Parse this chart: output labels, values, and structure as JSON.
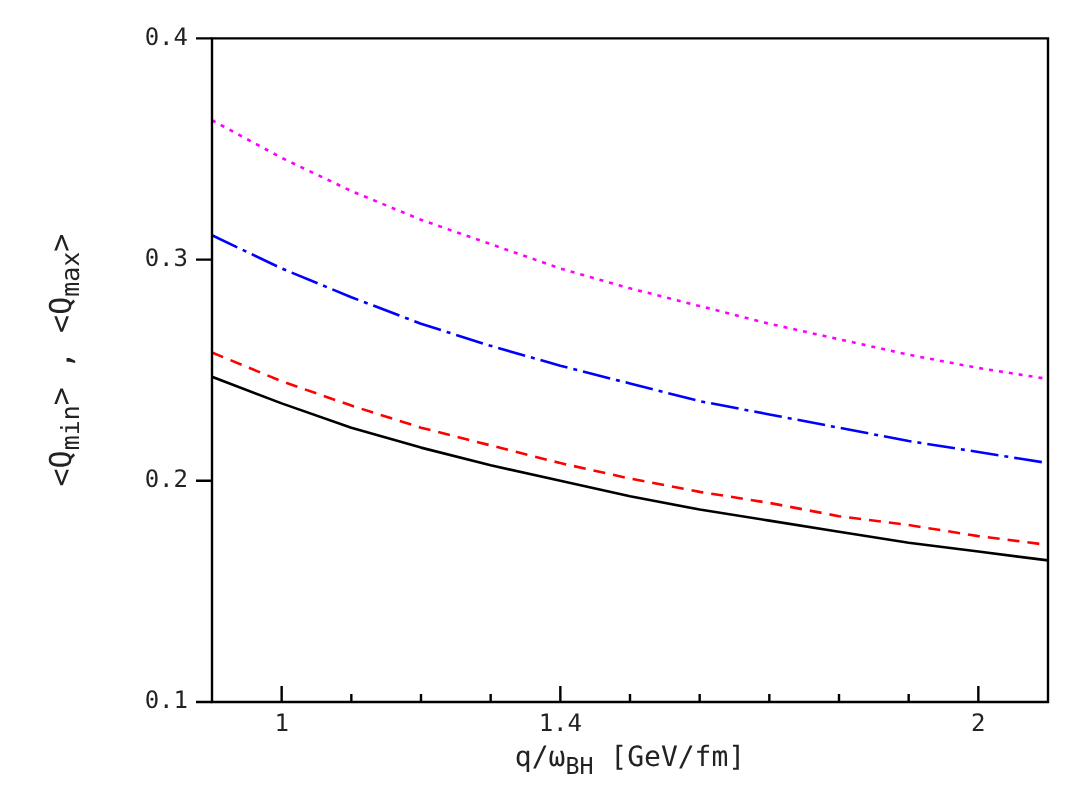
{
  "chart_data": {
    "type": "line",
    "xlabel": "q/ω$_{BH}$  [GeV/fm]",
    "ylabel": "<Q$_{min}$>  ,  <Q$_{max}$>",
    "x": [
      0.9,
      1.0,
      1.1,
      1.2,
      1.3,
      1.4,
      1.5,
      1.6,
      1.7,
      1.8,
      1.9,
      2.0,
      2.1
    ],
    "series": [
      {
        "color": "#000000",
        "line_style": "solid",
        "values": [
          0.247,
          0.235,
          0.224,
          0.215,
          0.207,
          0.2,
          0.193,
          0.187,
          0.182,
          0.177,
          0.172,
          0.168,
          0.164
        ]
      },
      {
        "color": "#ff0000",
        "line_style": "dashed",
        "values": [
          0.258,
          0.245,
          0.234,
          0.224,
          0.216,
          0.208,
          0.201,
          0.195,
          0.19,
          0.184,
          0.18,
          0.175,
          0.171
        ]
      },
      {
        "color": "#0000ff",
        "line_style": "dashdot",
        "values": [
          0.311,
          0.296,
          0.283,
          0.271,
          0.261,
          0.252,
          0.244,
          0.236,
          0.23,
          0.224,
          0.218,
          0.213,
          0.208
        ]
      },
      {
        "color": "#ff00ff",
        "line_style": "dotted",
        "values": [
          0.363,
          0.346,
          0.331,
          0.318,
          0.307,
          0.296,
          0.287,
          0.279,
          0.271,
          0.264,
          0.257,
          0.251,
          0.246
        ]
      }
    ],
    "xlim": [
      0.9,
      2.1
    ],
    "xticks": [
      1,
      {
        "value": 1.1,
        "label": null
      },
      {
        "value": 1.2,
        "label": null
      },
      {
        "value": 1.3,
        "label": null
      },
      1.4,
      {
        "value": 1.5,
        "label": null
      },
      {
        "value": 1.6,
        "label": null
      },
      {
        "value": 1.7,
        "label": null
      },
      {
        "value": 1.8,
        "label": null
      },
      {
        "value": 1.9,
        "label": null
      },
      2
    ],
    "ylim": [
      0.1,
      0.4
    ],
    "yticks": [
      0.1,
      0.2,
      0.3,
      0.4
    ],
    "grid": false,
    "legend": false,
    "marker": "none"
  }
}
